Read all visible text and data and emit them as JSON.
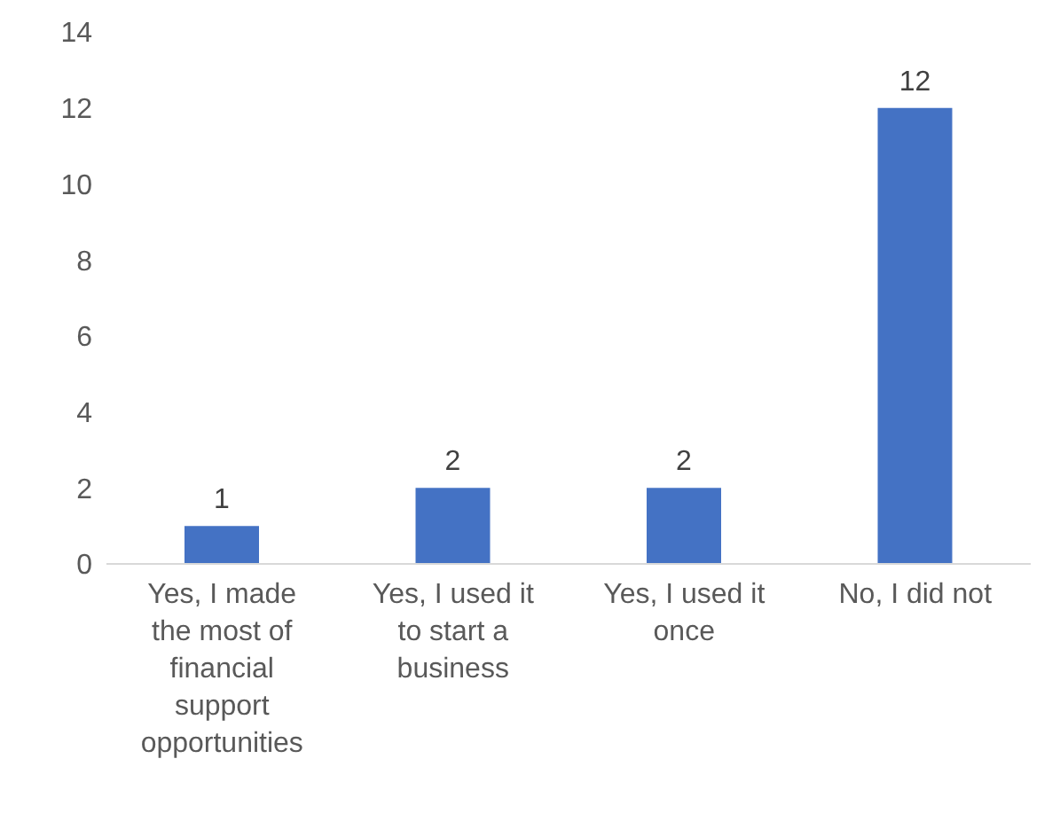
{
  "chart_data": {
    "type": "bar",
    "categories": [
      "Yes, I made the most of financial support opportunities",
      "Yes, I used it to start a business",
      "Yes, I used it once",
      "No, I did not"
    ],
    "values": [
      1,
      2,
      2,
      12
    ],
    "color": "#4472c4",
    "ylim": [
      0,
      14
    ],
    "yticks": [
      0,
      2,
      4,
      6,
      8,
      10,
      12,
      14
    ],
    "grid": false,
    "legend": false,
    "data_labels": true
  }
}
